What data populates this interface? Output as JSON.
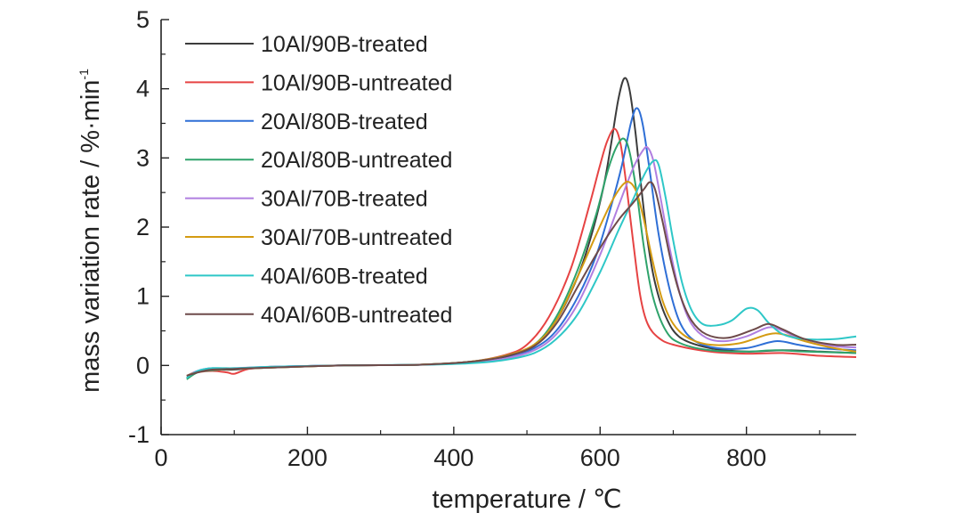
{
  "chart_data": {
    "type": "line",
    "title": "",
    "xlabel": "temperature / ℃",
    "ylabel": "mass variation rate / %·min",
    "ylabel_superscript": "-1",
    "xlim": [
      0,
      950
    ],
    "ylim": [
      -1,
      5
    ],
    "xticks": [
      0,
      200,
      400,
      600,
      800
    ],
    "yticks": [
      -1,
      0,
      1,
      2,
      3,
      4,
      5
    ],
    "grid": false,
    "legend_position": "top-left",
    "series": [
      {
        "name": "10Al/90B-treated",
        "color": "#3c3c3c",
        "points": [
          [
            35,
            -0.18
          ],
          [
            50,
            -0.1
          ],
          [
            70,
            -0.06
          ],
          [
            100,
            -0.06
          ],
          [
            150,
            -0.02
          ],
          [
            250,
            0
          ],
          [
            350,
            0.01
          ],
          [
            420,
            0.05
          ],
          [
            470,
            0.12
          ],
          [
            510,
            0.3
          ],
          [
            540,
            0.65
          ],
          [
            570,
            1.3
          ],
          [
            590,
            1.95
          ],
          [
            605,
            2.6
          ],
          [
            615,
            3.2
          ],
          [
            625,
            3.85
          ],
          [
            633,
            4.15
          ],
          [
            640,
            4.0
          ],
          [
            648,
            3.4
          ],
          [
            656,
            2.6
          ],
          [
            665,
            1.8
          ],
          [
            675,
            1.2
          ],
          [
            690,
            0.7
          ],
          [
            710,
            0.4
          ],
          [
            750,
            0.25
          ],
          [
            800,
            0.2
          ],
          [
            850,
            0.22
          ],
          [
            900,
            0.2
          ],
          [
            950,
            0.18
          ]
        ]
      },
      {
        "name": "10Al/90B-untreated",
        "color": "#e64343",
        "points": [
          [
            35,
            -0.15
          ],
          [
            50,
            -0.1
          ],
          [
            70,
            -0.08
          ],
          [
            90,
            -0.1
          ],
          [
            100,
            -0.12
          ],
          [
            120,
            -0.05
          ],
          [
            150,
            -0.03
          ],
          [
            250,
            0
          ],
          [
            350,
            0.01
          ],
          [
            420,
            0.05
          ],
          [
            470,
            0.15
          ],
          [
            500,
            0.3
          ],
          [
            530,
            0.7
          ],
          [
            560,
            1.4
          ],
          [
            585,
            2.3
          ],
          [
            600,
            2.9
          ],
          [
            610,
            3.25
          ],
          [
            620,
            3.42
          ],
          [
            628,
            3.2
          ],
          [
            636,
            2.6
          ],
          [
            645,
            1.8
          ],
          [
            655,
            1.0
          ],
          [
            665,
            0.6
          ],
          [
            680,
            0.4
          ],
          [
            700,
            0.3
          ],
          [
            750,
            0.2
          ],
          [
            800,
            0.17
          ],
          [
            850,
            0.18
          ],
          [
            900,
            0.14
          ],
          [
            950,
            0.12
          ]
        ]
      },
      {
        "name": "20Al/80B-treated",
        "color": "#2f6fd6",
        "points": [
          [
            35,
            -0.18
          ],
          [
            50,
            -0.08
          ],
          [
            70,
            -0.04
          ],
          [
            100,
            -0.05
          ],
          [
            150,
            -0.02
          ],
          [
            250,
            0
          ],
          [
            350,
            0.01
          ],
          [
            420,
            0.04
          ],
          [
            470,
            0.1
          ],
          [
            510,
            0.25
          ],
          [
            540,
            0.5
          ],
          [
            570,
            1.0
          ],
          [
            595,
            1.6
          ],
          [
            615,
            2.3
          ],
          [
            630,
            2.9
          ],
          [
            642,
            3.5
          ],
          [
            650,
            3.72
          ],
          [
            658,
            3.5
          ],
          [
            668,
            2.8
          ],
          [
            680,
            1.9
          ],
          [
            695,
            1.1
          ],
          [
            710,
            0.6
          ],
          [
            730,
            0.35
          ],
          [
            760,
            0.25
          ],
          [
            800,
            0.25
          ],
          [
            840,
            0.35
          ],
          [
            870,
            0.3
          ],
          [
            900,
            0.25
          ],
          [
            950,
            0.22
          ]
        ]
      },
      {
        "name": "20Al/80B-untreated",
        "color": "#2fa36b",
        "points": [
          [
            35,
            -0.2
          ],
          [
            50,
            -0.1
          ],
          [
            70,
            -0.07
          ],
          [
            100,
            -0.05
          ],
          [
            150,
            -0.03
          ],
          [
            250,
            0
          ],
          [
            350,
            0.01
          ],
          [
            420,
            0.05
          ],
          [
            470,
            0.14
          ],
          [
            510,
            0.3
          ],
          [
            540,
            0.7
          ],
          [
            570,
            1.4
          ],
          [
            595,
            2.2
          ],
          [
            610,
            2.8
          ],
          [
            622,
            3.15
          ],
          [
            632,
            3.28
          ],
          [
            640,
            3.1
          ],
          [
            650,
            2.5
          ],
          [
            660,
            1.7
          ],
          [
            672,
            1.0
          ],
          [
            690,
            0.5
          ],
          [
            710,
            0.32
          ],
          [
            750,
            0.22
          ],
          [
            800,
            0.2
          ],
          [
            840,
            0.22
          ],
          [
            880,
            0.2
          ],
          [
            950,
            0.18
          ]
        ]
      },
      {
        "name": "30Al/70B-treated",
        "color": "#b07fe0",
        "points": [
          [
            35,
            -0.15
          ],
          [
            50,
            -0.08
          ],
          [
            70,
            -0.05
          ],
          [
            100,
            -0.04
          ],
          [
            150,
            -0.02
          ],
          [
            250,
            0
          ],
          [
            350,
            0.01
          ],
          [
            420,
            0.04
          ],
          [
            470,
            0.1
          ],
          [
            510,
            0.22
          ],
          [
            540,
            0.45
          ],
          [
            570,
            0.9
          ],
          [
            600,
            1.6
          ],
          [
            625,
            2.3
          ],
          [
            645,
            2.85
          ],
          [
            658,
            3.1
          ],
          [
            665,
            3.15
          ],
          [
            673,
            2.95
          ],
          [
            683,
            2.4
          ],
          [
            695,
            1.7
          ],
          [
            710,
            1.0
          ],
          [
            725,
            0.6
          ],
          [
            745,
            0.4
          ],
          [
            770,
            0.35
          ],
          [
            800,
            0.42
          ],
          [
            830,
            0.55
          ],
          [
            850,
            0.5
          ],
          [
            880,
            0.35
          ],
          [
            920,
            0.28
          ],
          [
            950,
            0.26
          ]
        ]
      },
      {
        "name": "30Al/70B-untreated",
        "color": "#d49b12",
        "points": [
          [
            35,
            -0.15
          ],
          [
            50,
            -0.09
          ],
          [
            70,
            -0.06
          ],
          [
            100,
            -0.05
          ],
          [
            150,
            -0.03
          ],
          [
            250,
            0
          ],
          [
            350,
            0.01
          ],
          [
            420,
            0.05
          ],
          [
            470,
            0.14
          ],
          [
            510,
            0.3
          ],
          [
            540,
            0.65
          ],
          [
            570,
            1.3
          ],
          [
            595,
            1.9
          ],
          [
            615,
            2.35
          ],
          [
            630,
            2.6
          ],
          [
            640,
            2.65
          ],
          [
            650,
            2.5
          ],
          [
            660,
            2.1
          ],
          [
            672,
            1.5
          ],
          [
            685,
            0.95
          ],
          [
            700,
            0.6
          ],
          [
            720,
            0.4
          ],
          [
            750,
            0.3
          ],
          [
            790,
            0.32
          ],
          [
            830,
            0.45
          ],
          [
            850,
            0.45
          ],
          [
            880,
            0.35
          ],
          [
            920,
            0.25
          ],
          [
            950,
            0.2
          ]
        ]
      },
      {
        "name": "40Al/60B-treated",
        "color": "#2ec7c7",
        "points": [
          [
            35,
            -0.18
          ],
          [
            50,
            -0.08
          ],
          [
            70,
            -0.04
          ],
          [
            100,
            -0.04
          ],
          [
            150,
            -0.02
          ],
          [
            250,
            0
          ],
          [
            350,
            0.01
          ],
          [
            420,
            0.03
          ],
          [
            470,
            0.08
          ],
          [
            510,
            0.18
          ],
          [
            540,
            0.38
          ],
          [
            570,
            0.75
          ],
          [
            600,
            1.35
          ],
          [
            625,
            1.95
          ],
          [
            645,
            2.4
          ],
          [
            660,
            2.75
          ],
          [
            672,
            2.95
          ],
          [
            680,
            2.9
          ],
          [
            690,
            2.4
          ],
          [
            700,
            1.8
          ],
          [
            712,
            1.2
          ],
          [
            725,
            0.8
          ],
          [
            740,
            0.6
          ],
          [
            760,
            0.58
          ],
          [
            780,
            0.65
          ],
          [
            800,
            0.82
          ],
          [
            815,
            0.8
          ],
          [
            830,
            0.62
          ],
          [
            850,
            0.45
          ],
          [
            880,
            0.38
          ],
          [
            920,
            0.38
          ],
          [
            950,
            0.42
          ]
        ]
      },
      {
        "name": "40Al/60B-untreated",
        "color": "#6e4a4a",
        "points": [
          [
            35,
            -0.15
          ],
          [
            50,
            -0.1
          ],
          [
            70,
            -0.06
          ],
          [
            100,
            -0.05
          ],
          [
            150,
            -0.03
          ],
          [
            250,
            0
          ],
          [
            350,
            0.01
          ],
          [
            420,
            0.05
          ],
          [
            470,
            0.13
          ],
          [
            510,
            0.28
          ],
          [
            540,
            0.6
          ],
          [
            570,
            1.15
          ],
          [
            600,
            1.7
          ],
          [
            625,
            2.1
          ],
          [
            645,
            2.35
          ],
          [
            660,
            2.55
          ],
          [
            668,
            2.65
          ],
          [
            675,
            2.55
          ],
          [
            685,
            2.1
          ],
          [
            697,
            1.5
          ],
          [
            710,
            1.0
          ],
          [
            725,
            0.65
          ],
          [
            745,
            0.45
          ],
          [
            775,
            0.4
          ],
          [
            810,
            0.52
          ],
          [
            830,
            0.6
          ],
          [
            850,
            0.52
          ],
          [
            880,
            0.38
          ],
          [
            920,
            0.3
          ],
          [
            950,
            0.3
          ]
        ]
      }
    ]
  }
}
